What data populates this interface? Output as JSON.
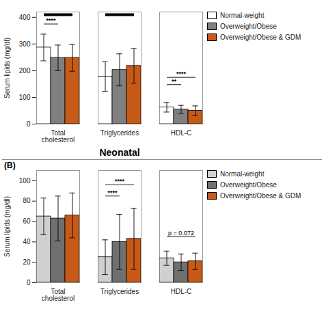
{
  "chart_data": [
    {
      "type": "bar",
      "categories": [
        "Total\ncholesterol",
        "Triglycerides",
        "HDL-C"
      ],
      "series": [
        {
          "name": "Normal-weight",
          "color": "white",
          "values": [
            287,
            178,
            63
          ],
          "errors": [
            50,
            55,
            18
          ]
        },
        {
          "name": "Overweight/Obese",
          "color": "#808080",
          "values": [
            248,
            203,
            55
          ],
          "errors": [
            48,
            60,
            15
          ]
        },
        {
          "name": "Overweight/Obese & GDM",
          "color": "#C85A17",
          "values": [
            248,
            218,
            50
          ],
          "errors": [
            50,
            65,
            18
          ]
        }
      ],
      "ylabel": "Serum lipids (mg/dl)",
      "ylim": [
        0,
        420
      ],
      "yticks": [
        0,
        100,
        200,
        300,
        400
      ],
      "grid": false,
      "legend": "right",
      "annotations": [
        {
          "text": "****",
          "category": "Total\ncholesterol",
          "from": "Normal-weight",
          "to": "Overweight/Obese",
          "y": 375
        },
        {
          "text": "**",
          "category": "HDL-C",
          "from": "Normal-weight",
          "to": "Overweight/Obese",
          "y": 148
        },
        {
          "text": "****",
          "category": "HDL-C",
          "from": "Normal-weight",
          "to": "Overweight/Obese & GDM",
          "y": 175
        },
        {
          "category": "Total\ncholesterol",
          "from": "Normal-weight",
          "to": "Overweight/Obese & GDM",
          "y": 410
        },
        {
          "category": "Triglycerides",
          "from": "Normal-weight",
          "to": "Overweight/Obese & GDM",
          "y": 410
        }
      ]
    },
    {
      "type": "bar",
      "title": "Neonatal",
      "panel_label": "(B)",
      "categories": [
        "Total\ncholesterol",
        "Triglycerides",
        "HDL-C"
      ],
      "series": [
        {
          "name": "Normal-weight",
          "color": "#d0d0d0",
          "values": [
            65,
            25,
            24
          ],
          "errors": [
            18,
            17,
            7
          ]
        },
        {
          "name": "Overweight/Obese",
          "color": "#707070",
          "values": [
            63,
            40,
            20
          ],
          "errors": [
            22,
            27,
            8
          ]
        },
        {
          "name": "Overweight/Obese & GDM",
          "color": "#C85A17",
          "values": [
            66,
            43,
            21
          ],
          "errors": [
            22,
            30,
            8
          ]
        }
      ],
      "ylabel": "Serum lipids (mg/dl)",
      "ylim": [
        0,
        110
      ],
      "yticks": [
        0,
        20,
        40,
        60,
        80,
        100
      ],
      "grid": false,
      "legend": "right",
      "annotations": [
        {
          "text": "****",
          "category": "Triglycerides",
          "from": "Normal-weight",
          "to": "Overweight/Obese",
          "y": 85
        },
        {
          "text": "****",
          "category": "Triglycerides",
          "from": "Normal-weight",
          "to": "Overweight/Obese & GDM",
          "y": 96
        },
        {
          "text": "p = 0.072",
          "category": "HDL-C",
          "from": "Normal-weight",
          "to": "Overweight/Obese & GDM",
          "y": 45
        }
      ]
    }
  ]
}
